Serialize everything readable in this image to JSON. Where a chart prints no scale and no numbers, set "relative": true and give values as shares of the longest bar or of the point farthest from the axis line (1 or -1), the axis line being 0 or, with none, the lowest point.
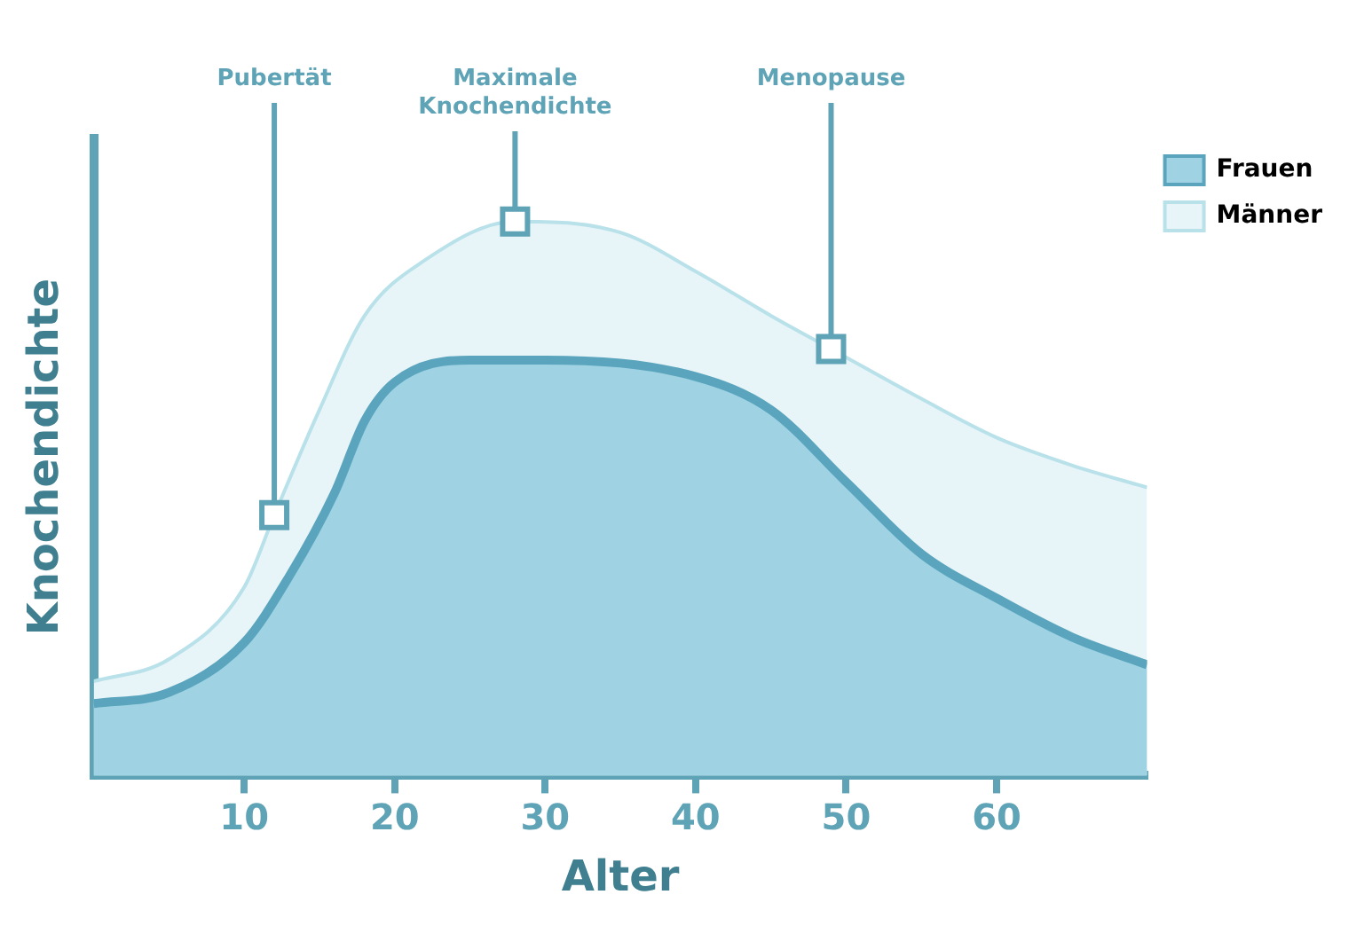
{
  "chart_data": {
    "type": "area",
    "xlabel": "Alter",
    "ylabel": "Knochendichte",
    "relative": true,
    "xlim": [
      0,
      70
    ],
    "xticks": [
      10,
      20,
      30,
      40,
      50,
      60
    ],
    "legend": "top right",
    "series": [
      {
        "name": "Männer",
        "color": "#b8e1ea",
        "x": [
          0,
          5,
          10,
          12,
          15,
          18,
          22,
          28,
          35,
          40,
          45,
          49,
          55,
          60,
          65,
          70
        ],
        "values": [
          0.17,
          0.21,
          0.34,
          0.47,
          0.66,
          0.83,
          0.93,
          1.0,
          0.98,
          0.91,
          0.83,
          0.77,
          0.68,
          0.61,
          0.56,
          0.52
        ]
      },
      {
        "name": "Frauen",
        "color": "#5aa5bd",
        "x": [
          0,
          5,
          10,
          13,
          16,
          18,
          20,
          25,
          30,
          40,
          45,
          50,
          55,
          60,
          65,
          70
        ],
        "values": [
          0.13,
          0.15,
          0.24,
          0.36,
          0.51,
          0.64,
          0.71,
          0.75,
          0.75,
          0.72,
          0.66,
          0.53,
          0.4,
          0.32,
          0.25,
          0.2
        ]
      }
    ],
    "annotations": [
      {
        "text": "Pubertät",
        "x": 12,
        "y": 0.47
      },
      {
        "text": "Maximale Knochendichte",
        "x": 28,
        "y": 1.0
      },
      {
        "text": "Menopause",
        "x": 49,
        "y": 0.77
      }
    ]
  }
}
